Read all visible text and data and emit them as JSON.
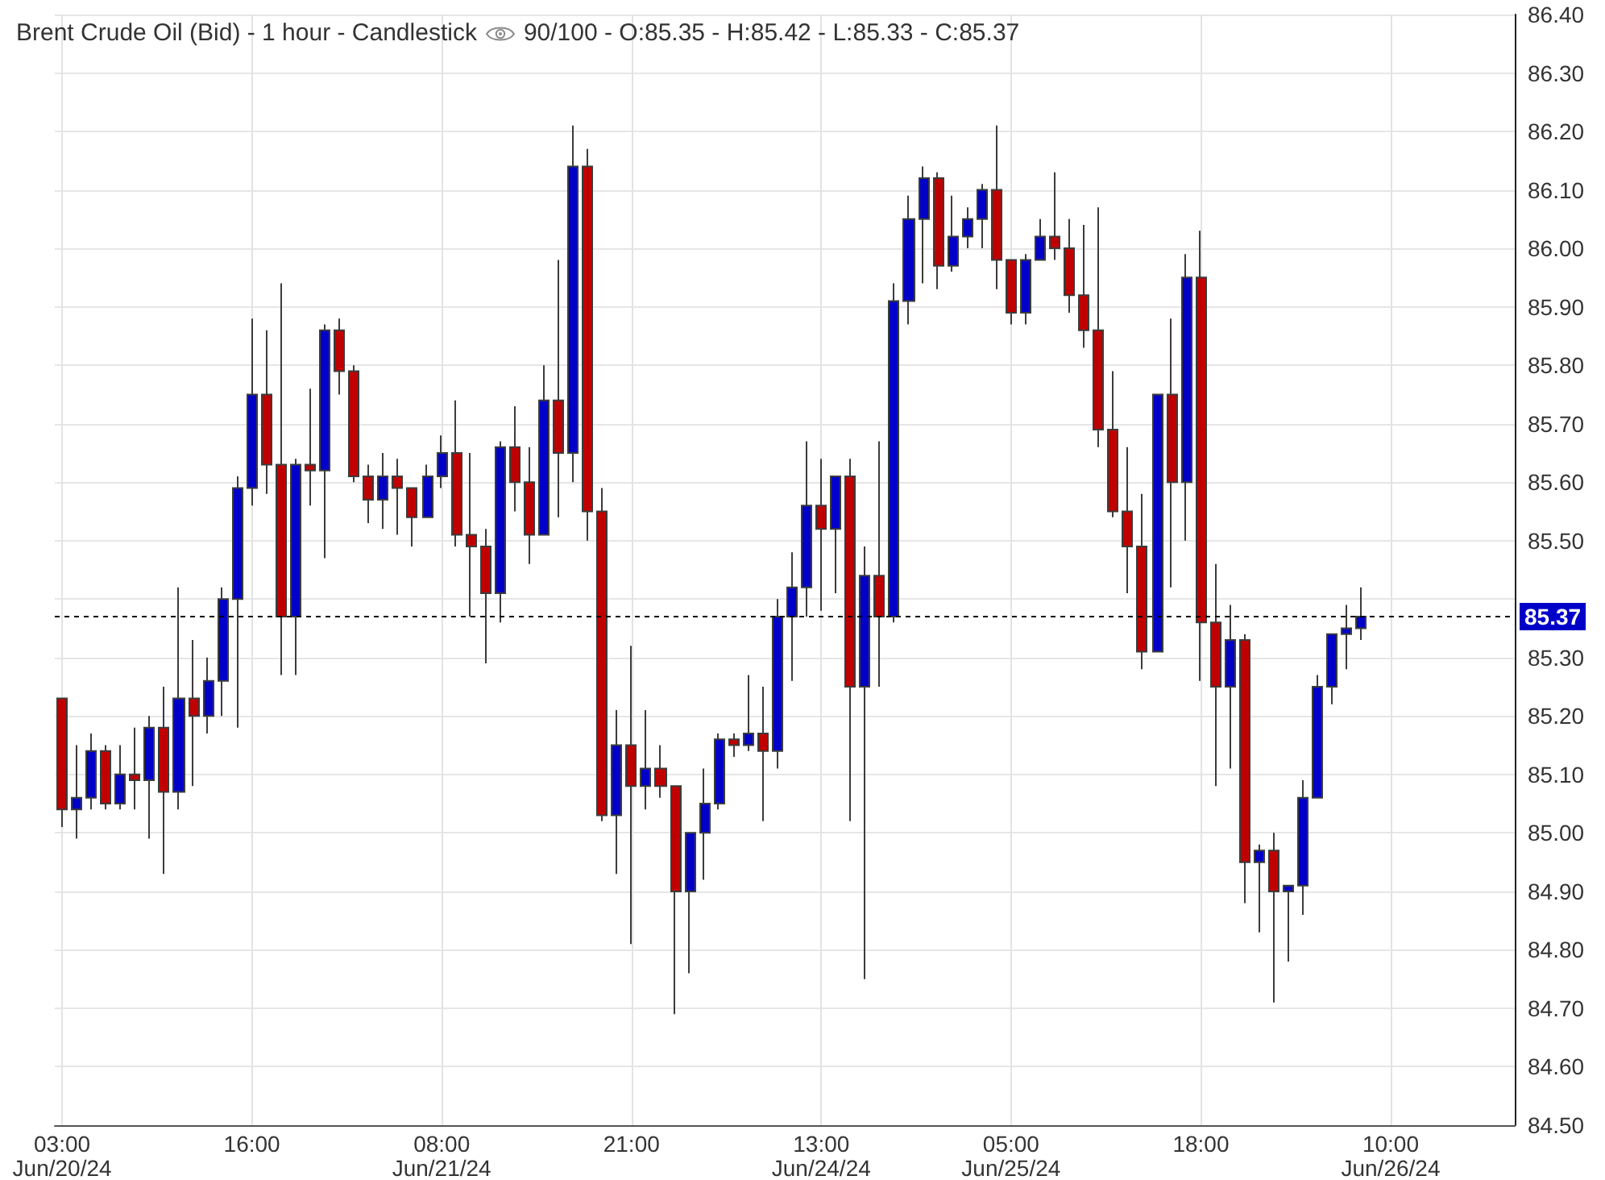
{
  "chart_data": {
    "type": "candlestick",
    "title": "Brent Crude Oil (Bid) - 1 hour - Candlestick",
    "subtitle": "90/100 - O:85.35 - H:85.42 - L:85.33 - C:85.37",
    "categories": [
      "03:00\nJun/20/24",
      null,
      null,
      null,
      null,
      null,
      null,
      null,
      null,
      null,
      null,
      null,
      null,
      "16:00",
      null,
      null,
      null,
      null,
      null,
      null,
      null,
      null,
      null,
      null,
      null,
      null,
      "08:00\nJun/21/24",
      null,
      null,
      null,
      null,
      null,
      null,
      null,
      null,
      null,
      null,
      null,
      null,
      "21:00",
      null,
      null,
      null,
      null,
      null,
      null,
      null,
      null,
      null,
      null,
      null,
      null,
      "13:00\nJun/24/24",
      null,
      null,
      null,
      null,
      null,
      null,
      null,
      null,
      null,
      null,
      null,
      null,
      "05:00\nJun/25/24",
      null,
      null,
      null,
      null,
      null,
      null,
      null,
      null,
      null,
      null,
      null,
      null,
      "18:00",
      null,
      null,
      null,
      null,
      null,
      null,
      null,
      null,
      null,
      null,
      null,
      null,
      "10:00\nJun/26/24",
      null,
      null,
      null,
      null,
      null,
      null,
      null,
      null
    ],
    "ohlc": [
      [
        85.23,
        85.23,
        85.01,
        85.04
      ],
      [
        85.04,
        85.15,
        84.99,
        85.06
      ],
      [
        85.06,
        85.17,
        85.04,
        85.14
      ],
      [
        85.14,
        85.15,
        85.04,
        85.05
      ],
      [
        85.05,
        85.15,
        85.04,
        85.1
      ],
      [
        85.1,
        85.18,
        85.04,
        85.09
      ],
      [
        85.09,
        85.2,
        84.99,
        85.18
      ],
      [
        85.18,
        85.25,
        84.93,
        85.07
      ],
      [
        85.07,
        85.42,
        85.04,
        85.23
      ],
      [
        85.23,
        85.33,
        85.08,
        85.2
      ],
      [
        85.2,
        85.3,
        85.17,
        85.26
      ],
      [
        85.26,
        85.42,
        85.2,
        85.4
      ],
      [
        85.4,
        85.61,
        85.18,
        85.59
      ],
      [
        85.59,
        85.88,
        85.56,
        85.75
      ],
      [
        85.75,
        85.86,
        85.58,
        85.63
      ],
      [
        85.63,
        85.94,
        85.27,
        85.37
      ],
      [
        85.37,
        85.64,
        85.27,
        85.63
      ],
      [
        85.63,
        85.76,
        85.56,
        85.62
      ],
      [
        85.62,
        85.87,
        85.47,
        85.86
      ],
      [
        85.86,
        85.88,
        85.75,
        85.79
      ],
      [
        85.79,
        85.8,
        85.6,
        85.61
      ],
      [
        85.61,
        85.63,
        85.53,
        85.57
      ],
      [
        85.57,
        85.65,
        85.52,
        85.61
      ],
      [
        85.61,
        85.64,
        85.51,
        85.59
      ],
      [
        85.59,
        85.59,
        85.49,
        85.54
      ],
      [
        85.54,
        85.63,
        85.54,
        85.61
      ],
      [
        85.61,
        85.68,
        85.59,
        85.65
      ],
      [
        85.65,
        85.74,
        85.49,
        85.51
      ],
      [
        85.51,
        85.65,
        85.37,
        85.49
      ],
      [
        85.49,
        85.52,
        85.29,
        85.41
      ],
      [
        85.41,
        85.67,
        85.36,
        85.66
      ],
      [
        85.66,
        85.73,
        85.55,
        85.6
      ],
      [
        85.6,
        85.66,
        85.46,
        85.51
      ],
      [
        85.51,
        85.8,
        85.51,
        85.74
      ],
      [
        85.74,
        85.98,
        85.54,
        85.65
      ],
      [
        85.65,
        86.21,
        85.6,
        86.14
      ],
      [
        86.14,
        86.17,
        85.5,
        85.55
      ],
      [
        85.55,
        85.59,
        85.02,
        85.03
      ],
      [
        85.03,
        85.21,
        84.93,
        85.15
      ],
      [
        85.15,
        85.32,
        84.81,
        85.08
      ],
      [
        85.08,
        85.21,
        85.04,
        85.11
      ],
      [
        85.11,
        85.15,
        85.06,
        85.08
      ],
      [
        85.08,
        85.08,
        84.69,
        84.9
      ],
      [
        84.9,
        85.0,
        84.76,
        85.0
      ],
      [
        85.0,
        85.11,
        84.92,
        85.05
      ],
      [
        85.05,
        85.17,
        85.04,
        85.16
      ],
      [
        85.16,
        85.17,
        85.13,
        85.15
      ],
      [
        85.15,
        85.27,
        85.14,
        85.17
      ],
      [
        85.17,
        85.25,
        85.02,
        85.14
      ],
      [
        85.14,
        85.4,
        85.11,
        85.37
      ],
      [
        85.37,
        85.48,
        85.26,
        85.42
      ],
      [
        85.42,
        85.67,
        85.37,
        85.56
      ],
      [
        85.56,
        85.64,
        85.38,
        85.52
      ],
      [
        85.52,
        85.61,
        85.41,
        85.61
      ],
      [
        85.61,
        85.64,
        85.02,
        85.25
      ],
      [
        85.25,
        85.49,
        84.75,
        85.44
      ],
      [
        85.44,
        85.67,
        85.25,
        85.37
      ],
      [
        85.37,
        85.94,
        85.36,
        85.91
      ],
      [
        85.91,
        86.09,
        85.87,
        86.05
      ],
      [
        86.05,
        86.14,
        85.94,
        86.12
      ],
      [
        86.12,
        86.13,
        85.93,
        85.97
      ],
      [
        85.97,
        86.09,
        85.96,
        86.02
      ],
      [
        86.02,
        86.07,
        86.0,
        86.05
      ],
      [
        86.05,
        86.11,
        86.0,
        86.1
      ],
      [
        86.1,
        86.21,
        85.93,
        85.98
      ],
      [
        85.98,
        85.98,
        85.87,
        85.89
      ],
      [
        85.89,
        85.99,
        85.87,
        85.98
      ],
      [
        85.98,
        86.05,
        85.98,
        86.02
      ],
      [
        86.02,
        86.13,
        85.98,
        86.0
      ],
      [
        86.0,
        86.05,
        85.89,
        85.92
      ],
      [
        85.92,
        86.04,
        85.83,
        85.86
      ],
      [
        85.86,
        86.07,
        85.66,
        85.69
      ],
      [
        85.69,
        85.79,
        85.54,
        85.55
      ],
      [
        85.55,
        85.66,
        85.41,
        85.49
      ],
      [
        85.49,
        85.58,
        85.28,
        85.31
      ],
      [
        85.31,
        85.75,
        85.31,
        85.75
      ],
      [
        85.75,
        85.88,
        85.42,
        85.6
      ],
      [
        85.6,
        85.99,
        85.5,
        85.95
      ],
      [
        85.95,
        86.03,
        85.26,
        85.36
      ],
      [
        85.36,
        85.46,
        85.08,
        85.25
      ],
      [
        85.25,
        85.39,
        85.11,
        85.33
      ],
      [
        85.33,
        85.34,
        84.88,
        84.95
      ],
      [
        84.95,
        84.98,
        84.83,
        84.97
      ],
      [
        84.97,
        85.0,
        84.71,
        84.9
      ],
      [
        84.9,
        84.91,
        84.78,
        84.91
      ],
      [
        84.91,
        85.09,
        84.86,
        85.06
      ],
      [
        85.06,
        85.27,
        85.06,
        85.25
      ],
      [
        85.25,
        85.34,
        85.22,
        85.34
      ],
      [
        85.34,
        85.39,
        85.28,
        85.35
      ],
      [
        85.35,
        85.42,
        85.33,
        85.37
      ],
      null,
      null,
      null,
      null,
      null,
      null,
      null,
      null,
      null,
      null
    ],
    "colors": [
      "#c00000",
      "#0000c8",
      "#0000c8",
      "#c00000",
      "#0000c8",
      "#c00000",
      "#0000c8",
      "#c00000",
      "#0000c8",
      "#c00000",
      "#0000c8",
      "#0000c8",
      "#0000c8",
      "#0000c8",
      "#c00000",
      "#c00000",
      "#0000c8",
      "#c00000",
      "#0000c8",
      "#c00000",
      "#c00000",
      "#c00000",
      "#0000c8",
      "#c00000",
      "#c00000",
      "#0000c8",
      "#0000c8",
      "#c00000",
      "#c00000",
      "#c00000",
      "#0000c8",
      "#c00000",
      "#c00000",
      "#0000c8",
      "#c00000",
      "#0000c8",
      "#c00000",
      "#c00000",
      "#0000c8",
      "#c00000",
      "#0000c8",
      "#c00000",
      "#c00000",
      "#0000c8",
      "#0000c8",
      "#0000c8",
      "#c00000",
      "#0000c8",
      "#c00000",
      "#0000c8",
      "#0000c8",
      "#0000c8",
      "#c00000",
      "#0000c8",
      "#c00000",
      "#0000c8",
      "#c00000",
      "#0000c8",
      "#0000c8",
      "#0000c8",
      "#c00000",
      "#0000c8",
      "#0000c8",
      "#0000c8",
      "#c00000",
      "#c00000",
      "#0000c8",
      "#0000c8",
      "#c00000",
      "#c00000",
      "#c00000",
      "#c00000",
      "#c00000",
      "#c00000",
      "#c00000",
      "#0000c8",
      "#c00000",
      "#0000c8",
      "#c00000",
      "#c00000",
      "#0000c8",
      "#c00000",
      "#0000c8",
      "#c00000",
      "#0000c8",
      "#0000c8",
      "#0000c8",
      "#0000c8",
      "#0000c8",
      "#0000c8",
      null,
      null,
      null,
      null,
      null,
      null,
      null,
      null,
      null,
      null
    ],
    "ylim": [
      84.5,
      86.4
    ],
    "yticks": [
      {
        "value": 84.5,
        "label": "84.50"
      },
      {
        "value": 84.6,
        "label": "84.60"
      },
      {
        "value": 84.7,
        "label": "84.70"
      },
      {
        "value": 84.8,
        "label": "84.80"
      },
      {
        "value": 84.9,
        "label": "84.90"
      },
      {
        "value": 85.0,
        "label": "85.00"
      },
      {
        "value": 85.1,
        "label": "85.10"
      },
      {
        "value": 85.2,
        "label": "85.20"
      },
      {
        "value": 85.3,
        "label": "85.30"
      },
      {
        "value": 85.4,
        "label": null
      },
      {
        "value": 85.5,
        "label": "85.50"
      },
      {
        "value": 85.6,
        "label": "85.60"
      },
      {
        "value": 85.7,
        "label": "85.70"
      },
      {
        "value": 85.8,
        "label": "85.80"
      },
      {
        "value": 85.9,
        "label": "85.90"
      },
      {
        "value": 86.0,
        "label": "86.00"
      },
      {
        "value": 86.1,
        "label": "86.10"
      },
      {
        "value": 86.2,
        "label": "86.20"
      },
      {
        "value": 86.3,
        "label": "86.30"
      },
      {
        "value": 86.4,
        "label": "86.40"
      }
    ],
    "ref_lines": [
      {
        "axis": "y",
        "value": 85.37,
        "label": "85.37",
        "color": "#000000",
        "line_style": "dashed"
      }
    ],
    "grid": true
  }
}
